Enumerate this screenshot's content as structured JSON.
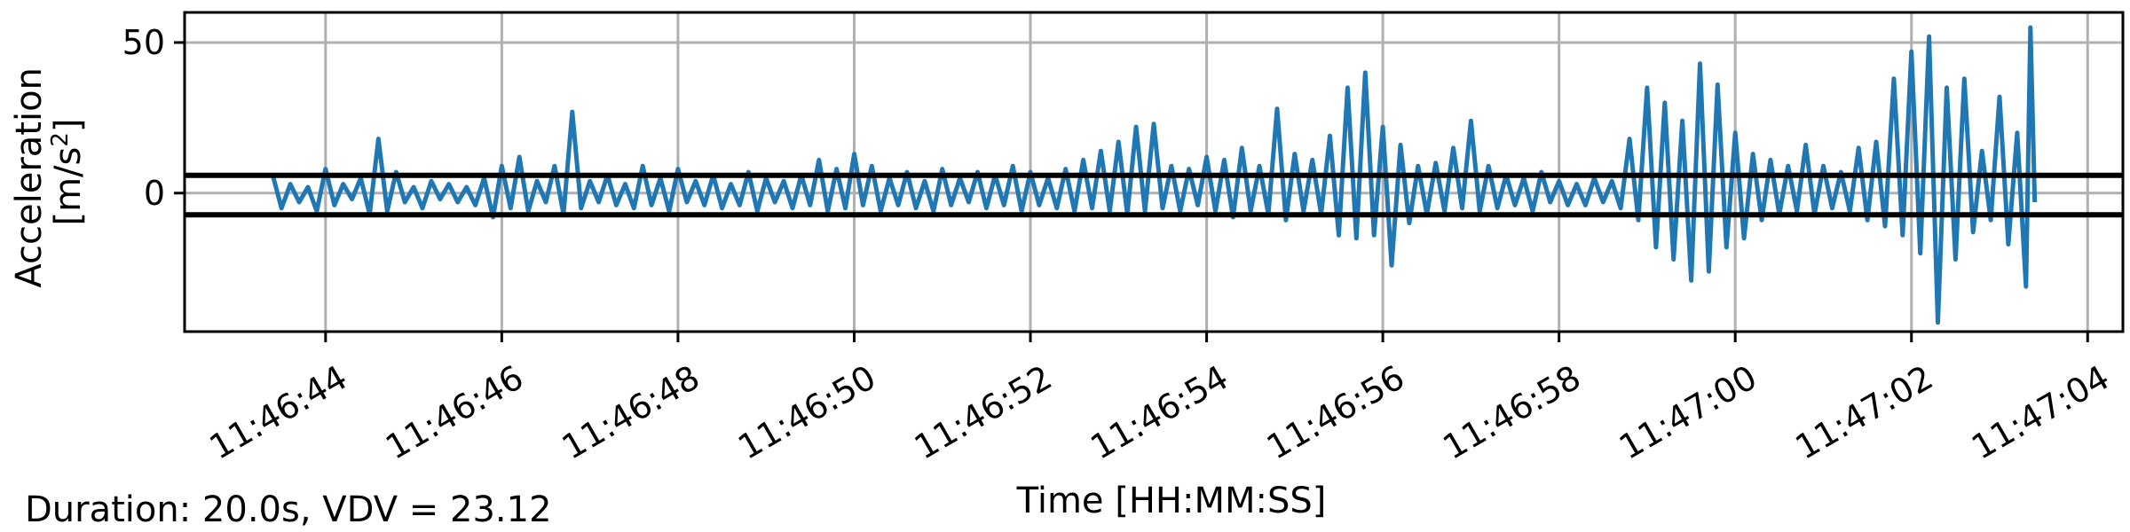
{
  "chart_data": {
    "type": "line",
    "xlabel": "Time [HH:MM:SS]",
    "ylabel_line1": "Acceleration",
    "ylabel_line2_prefix": "[m/s",
    "ylabel_line2_sup": "2",
    "ylabel_line2_suffix": "]",
    "x_tick_labels": [
      "11:46:44",
      "11:46:46",
      "11:46:48",
      "11:46:50",
      "11:46:52",
      "11:46:54",
      "11:46:56",
      "11:46:58",
      "11:47:00",
      "11:47:02",
      "11:47:04"
    ],
    "x_tick_seconds": [
      44,
      46,
      48,
      50,
      52,
      54,
      56,
      58,
      60,
      62,
      64
    ],
    "xlim_seconds": [
      42.4,
      64.4
    ],
    "y_ticks": [
      0,
      50
    ],
    "y_tick_labels": [
      "0",
      "50"
    ],
    "ylim": [
      -46,
      60
    ],
    "grid": true,
    "threshold_lines": [
      5.9,
      -7.2
    ],
    "series": [
      {
        "color": "#1f77b4",
        "start_seconds": 43.4,
        "end_seconds": 63.4,
        "points": [
          [
            43.4,
            6
          ],
          [
            43.5,
            -5
          ],
          [
            43.6,
            3
          ],
          [
            43.7,
            -3
          ],
          [
            43.8,
            2
          ],
          [
            43.9,
            -6
          ],
          [
            44.0,
            8
          ],
          [
            44.1,
            -4
          ],
          [
            44.2,
            3
          ],
          [
            44.3,
            -2
          ],
          [
            44.4,
            5
          ],
          [
            44.5,
            -7
          ],
          [
            44.6,
            18
          ],
          [
            44.7,
            -6
          ],
          [
            44.8,
            7
          ],
          [
            44.9,
            -3
          ],
          [
            45.0,
            2
          ],
          [
            45.1,
            -5
          ],
          [
            45.2,
            4
          ],
          [
            45.3,
            -2
          ],
          [
            45.4,
            3
          ],
          [
            45.5,
            -3
          ],
          [
            45.6,
            2
          ],
          [
            45.7,
            -4
          ],
          [
            45.8,
            5
          ],
          [
            45.9,
            -8
          ],
          [
            46.0,
            9
          ],
          [
            46.1,
            -5
          ],
          [
            46.2,
            12
          ],
          [
            46.3,
            -6
          ],
          [
            46.4,
            4
          ],
          [
            46.5,
            -3
          ],
          [
            46.6,
            9
          ],
          [
            46.7,
            -7
          ],
          [
            46.8,
            27
          ],
          [
            46.9,
            -5
          ],
          [
            47.0,
            4
          ],
          [
            47.1,
            -3
          ],
          [
            47.2,
            6
          ],
          [
            47.3,
            -4
          ],
          [
            47.4,
            3
          ],
          [
            47.5,
            -5
          ],
          [
            47.6,
            9
          ],
          [
            47.7,
            -4
          ],
          [
            47.8,
            5
          ],
          [
            47.9,
            -6
          ],
          [
            48.0,
            8
          ],
          [
            48.1,
            -3
          ],
          [
            48.2,
            4
          ],
          [
            48.3,
            -4
          ],
          [
            48.4,
            6
          ],
          [
            48.5,
            -5
          ],
          [
            48.6,
            3
          ],
          [
            48.7,
            -4
          ],
          [
            48.8,
            7
          ],
          [
            48.9,
            -6
          ],
          [
            49.0,
            5
          ],
          [
            49.1,
            -3
          ],
          [
            49.2,
            4
          ],
          [
            49.3,
            -5
          ],
          [
            49.4,
            6
          ],
          [
            49.5,
            -4
          ],
          [
            49.6,
            11
          ],
          [
            49.7,
            -6
          ],
          [
            49.8,
            8
          ],
          [
            49.9,
            -5
          ],
          [
            50.0,
            13
          ],
          [
            50.1,
            -4
          ],
          [
            50.2,
            9
          ],
          [
            50.3,
            -6
          ],
          [
            50.4,
            5
          ],
          [
            50.5,
            -4
          ],
          [
            50.6,
            7
          ],
          [
            50.7,
            -5
          ],
          [
            50.8,
            4
          ],
          [
            50.9,
            -6
          ],
          [
            51.0,
            8
          ],
          [
            51.1,
            -4
          ],
          [
            51.2,
            5
          ],
          [
            51.3,
            -3
          ],
          [
            51.4,
            7
          ],
          [
            51.5,
            -5
          ],
          [
            51.6,
            6
          ],
          [
            51.7,
            -4
          ],
          [
            51.8,
            9
          ],
          [
            51.9,
            -6
          ],
          [
            52.0,
            7
          ],
          [
            52.1,
            -4
          ],
          [
            52.2,
            5
          ],
          [
            52.3,
            -5
          ],
          [
            52.4,
            8
          ],
          [
            52.5,
            -6
          ],
          [
            52.6,
            11
          ],
          [
            52.7,
            -5
          ],
          [
            52.8,
            14
          ],
          [
            52.9,
            -6
          ],
          [
            53.0,
            17
          ],
          [
            53.1,
            -7
          ],
          [
            53.2,
            22
          ],
          [
            53.3,
            -6
          ],
          [
            53.4,
            23
          ],
          [
            53.5,
            -5
          ],
          [
            53.6,
            9
          ],
          [
            53.7,
            -6
          ],
          [
            53.8,
            8
          ],
          [
            53.9,
            -4
          ],
          [
            54.0,
            12
          ],
          [
            54.1,
            -6
          ],
          [
            54.2,
            11
          ],
          [
            54.3,
            -8
          ],
          [
            54.4,
            15
          ],
          [
            54.5,
            -6
          ],
          [
            54.6,
            9
          ],
          [
            54.7,
            -7
          ],
          [
            54.8,
            28
          ],
          [
            54.9,
            -9
          ],
          [
            55.0,
            13
          ],
          [
            55.1,
            -6
          ],
          [
            55.2,
            11
          ],
          [
            55.3,
            -7
          ],
          [
            55.4,
            19
          ],
          [
            55.5,
            -14
          ],
          [
            55.6,
            35
          ],
          [
            55.7,
            -15
          ],
          [
            55.8,
            40
          ],
          [
            55.9,
            -14
          ],
          [
            56.0,
            22
          ],
          [
            56.1,
            -24
          ],
          [
            56.2,
            16
          ],
          [
            56.3,
            -10
          ],
          [
            56.4,
            9
          ],
          [
            56.5,
            -7
          ],
          [
            56.6,
            10
          ],
          [
            56.7,
            -6
          ],
          [
            56.8,
            15
          ],
          [
            56.9,
            -5
          ],
          [
            57.0,
            24
          ],
          [
            57.1,
            -6
          ],
          [
            57.2,
            9
          ],
          [
            57.3,
            -5
          ],
          [
            57.4,
            6
          ],
          [
            57.5,
            -4
          ],
          [
            57.6,
            5
          ],
          [
            57.7,
            -6
          ],
          [
            57.8,
            7
          ],
          [
            57.9,
            -3
          ],
          [
            58.0,
            4
          ],
          [
            58.1,
            -4
          ],
          [
            58.2,
            3
          ],
          [
            58.3,
            -4
          ],
          [
            58.4,
            5
          ],
          [
            58.5,
            -3
          ],
          [
            58.6,
            4
          ],
          [
            58.7,
            -5
          ],
          [
            58.8,
            18
          ],
          [
            58.9,
            -9
          ],
          [
            59.0,
            35
          ],
          [
            59.1,
            -18
          ],
          [
            59.2,
            30
          ],
          [
            59.3,
            -22
          ],
          [
            59.4,
            24
          ],
          [
            59.5,
            -29
          ],
          [
            59.6,
            43
          ],
          [
            59.7,
            -26
          ],
          [
            59.8,
            36
          ],
          [
            59.9,
            -18
          ],
          [
            60.0,
            20
          ],
          [
            60.1,
            -15
          ],
          [
            60.2,
            13
          ],
          [
            60.3,
            -9
          ],
          [
            60.4,
            11
          ],
          [
            60.5,
            -7
          ],
          [
            60.6,
            9
          ],
          [
            60.7,
            -6
          ],
          [
            60.8,
            16
          ],
          [
            60.9,
            -7
          ],
          [
            61.0,
            9
          ],
          [
            61.1,
            -5
          ],
          [
            61.2,
            7
          ],
          [
            61.3,
            -6
          ],
          [
            61.4,
            15
          ],
          [
            61.5,
            -9
          ],
          [
            61.6,
            17
          ],
          [
            61.7,
            -11
          ],
          [
            61.8,
            38
          ],
          [
            61.9,
            -14
          ],
          [
            62.0,
            47
          ],
          [
            62.1,
            -20
          ],
          [
            62.2,
            52
          ],
          [
            62.3,
            -43
          ],
          [
            62.4,
            35
          ],
          [
            62.5,
            -22
          ],
          [
            62.6,
            38
          ],
          [
            62.7,
            -13
          ],
          [
            62.8,
            14
          ],
          [
            62.9,
            -9
          ],
          [
            63.0,
            32
          ],
          [
            63.1,
            -17
          ],
          [
            63.2,
            20
          ],
          [
            63.3,
            -31
          ],
          [
            63.35,
            55
          ],
          [
            63.4,
            -3
          ]
        ]
      }
    ]
  },
  "caption": "Duration: 20.0s, VDV = 23.12"
}
